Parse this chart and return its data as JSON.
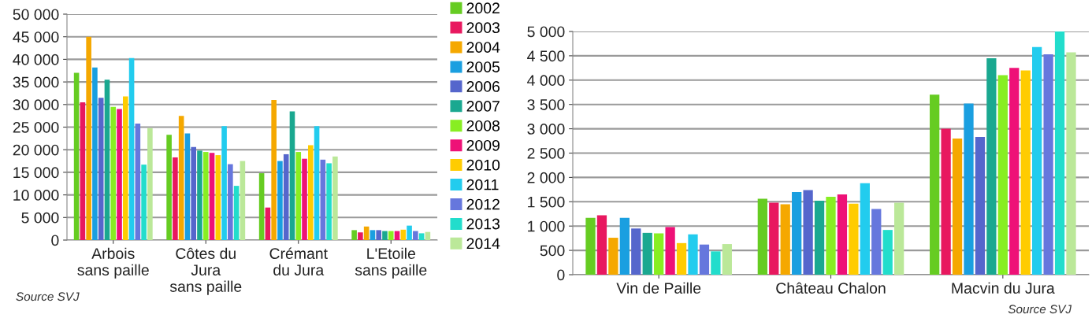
{
  "chart_data": [
    {
      "type": "bar",
      "categories": [
        "Arbois\nsans paille",
        "Côtes du\nJura\nsans paille",
        "Crémant\ndu Jura",
        "L'Etoile\nsans paille"
      ],
      "series": [
        {
          "name": "2002",
          "color": "#66cc22",
          "values": [
            37000,
            23300,
            14800,
            2200
          ]
        },
        {
          "name": "2003",
          "color": "#e8185f",
          "values": [
            30500,
            18300,
            7200,
            1700
          ]
        },
        {
          "name": "2004",
          "color": "#f5a800",
          "values": [
            45000,
            27500,
            31000,
            3000
          ]
        },
        {
          "name": "2005",
          "color": "#1a9fe0",
          "values": [
            38200,
            23600,
            17500,
            2200
          ]
        },
        {
          "name": "2006",
          "color": "#5566cc",
          "values": [
            31500,
            20600,
            19000,
            2200
          ]
        },
        {
          "name": "2007",
          "color": "#1aa890",
          "values": [
            35500,
            19800,
            28500,
            2000
          ]
        },
        {
          "name": "2008",
          "color": "#88ee22",
          "values": [
            29500,
            19500,
            19500,
            2000
          ]
        },
        {
          "name": "2009",
          "color": "#ee1177",
          "values": [
            29000,
            19300,
            18000,
            2000
          ]
        },
        {
          "name": "2010",
          "color": "#ffcc00",
          "values": [
            31800,
            18800,
            21000,
            2300
          ]
        },
        {
          "name": "2011",
          "color": "#22ccee",
          "values": [
            40300,
            25200,
            25200,
            3200
          ]
        },
        {
          "name": "2012",
          "color": "#6677dd",
          "values": [
            25800,
            16800,
            17800,
            2000
          ]
        },
        {
          "name": "2013",
          "color": "#22ddcc",
          "values": [
            16700,
            12000,
            17000,
            1500
          ]
        },
        {
          "name": "2014",
          "color": "#bbe899",
          "values": [
            24800,
            17500,
            18500,
            1800
          ]
        }
      ],
      "ylim": [
        0,
        50000
      ],
      "yticks": [
        0,
        {
          "value": 5000,
          "label": "5 000"
        },
        {
          "value": 10000,
          "label": "10 000"
        },
        {
          "value": 15000,
          "label": "15 000"
        },
        {
          "value": 20000,
          "label": "20 000"
        },
        {
          "value": 25000,
          "label": "25 000"
        },
        {
          "value": 30000,
          "label": "30 000"
        },
        {
          "value": 35000,
          "label": "35 000"
        },
        {
          "value": 40000,
          "label": "40 000"
        },
        {
          "value": 45000,
          "label": "45 000"
        },
        {
          "value": 50000,
          "label": "50 000"
        }
      ],
      "grid": "y",
      "legend": "right",
      "annotations": [
        "Source SVJ"
      ]
    },
    {
      "type": "bar",
      "categories": [
        "Vin de Paille",
        "Château Chalon",
        "Macvin du Jura"
      ],
      "series": [
        {
          "color": "#66cc22",
          "values": [
            1170,
            1560,
            3700
          ]
        },
        {
          "color": "#e8185f",
          "values": [
            1220,
            1480,
            3000
          ]
        },
        {
          "color": "#f5a800",
          "values": [
            760,
            1450,
            2800
          ]
        },
        {
          "color": "#1a9fe0",
          "values": [
            1170,
            1700,
            3520
          ]
        },
        {
          "color": "#5566cc",
          "values": [
            950,
            1740,
            2830
          ]
        },
        {
          "color": "#1aa890",
          "values": [
            860,
            1520,
            4450
          ]
        },
        {
          "color": "#88ee22",
          "values": [
            850,
            1600,
            4100
          ]
        },
        {
          "color": "#ee1177",
          "values": [
            980,
            1650,
            4250
          ]
        },
        {
          "color": "#ffcc00",
          "values": [
            650,
            1460,
            4200
          ]
        },
        {
          "color": "#22ccee",
          "values": [
            830,
            1880,
            4680
          ]
        },
        {
          "color": "#6677dd",
          "values": [
            620,
            1350,
            4530
          ]
        },
        {
          "color": "#22ddcc",
          "values": [
            480,
            920,
            5000
          ]
        },
        {
          "color": "#bbe899",
          "values": [
            630,
            1480,
            4570
          ]
        }
      ],
      "ylim": [
        0,
        5000
      ],
      "yticks": [
        0,
        500,
        {
          "value": 1000,
          "label": "1 000"
        },
        {
          "value": 1500,
          "label": "1 500"
        },
        {
          "value": 2000,
          "label": "2 000"
        },
        {
          "value": 2500,
          "label": "2 500"
        },
        {
          "value": 3000,
          "label": "3 000"
        },
        {
          "value": 3500,
          "label": "3 500"
        },
        {
          "value": 4000,
          "label": "4 000"
        },
        {
          "value": 4500,
          "label": "4 500"
        },
        {
          "value": 5000,
          "label": "5 000"
        }
      ],
      "grid": "y",
      "annotations": [
        "Source SVJ"
      ]
    }
  ]
}
